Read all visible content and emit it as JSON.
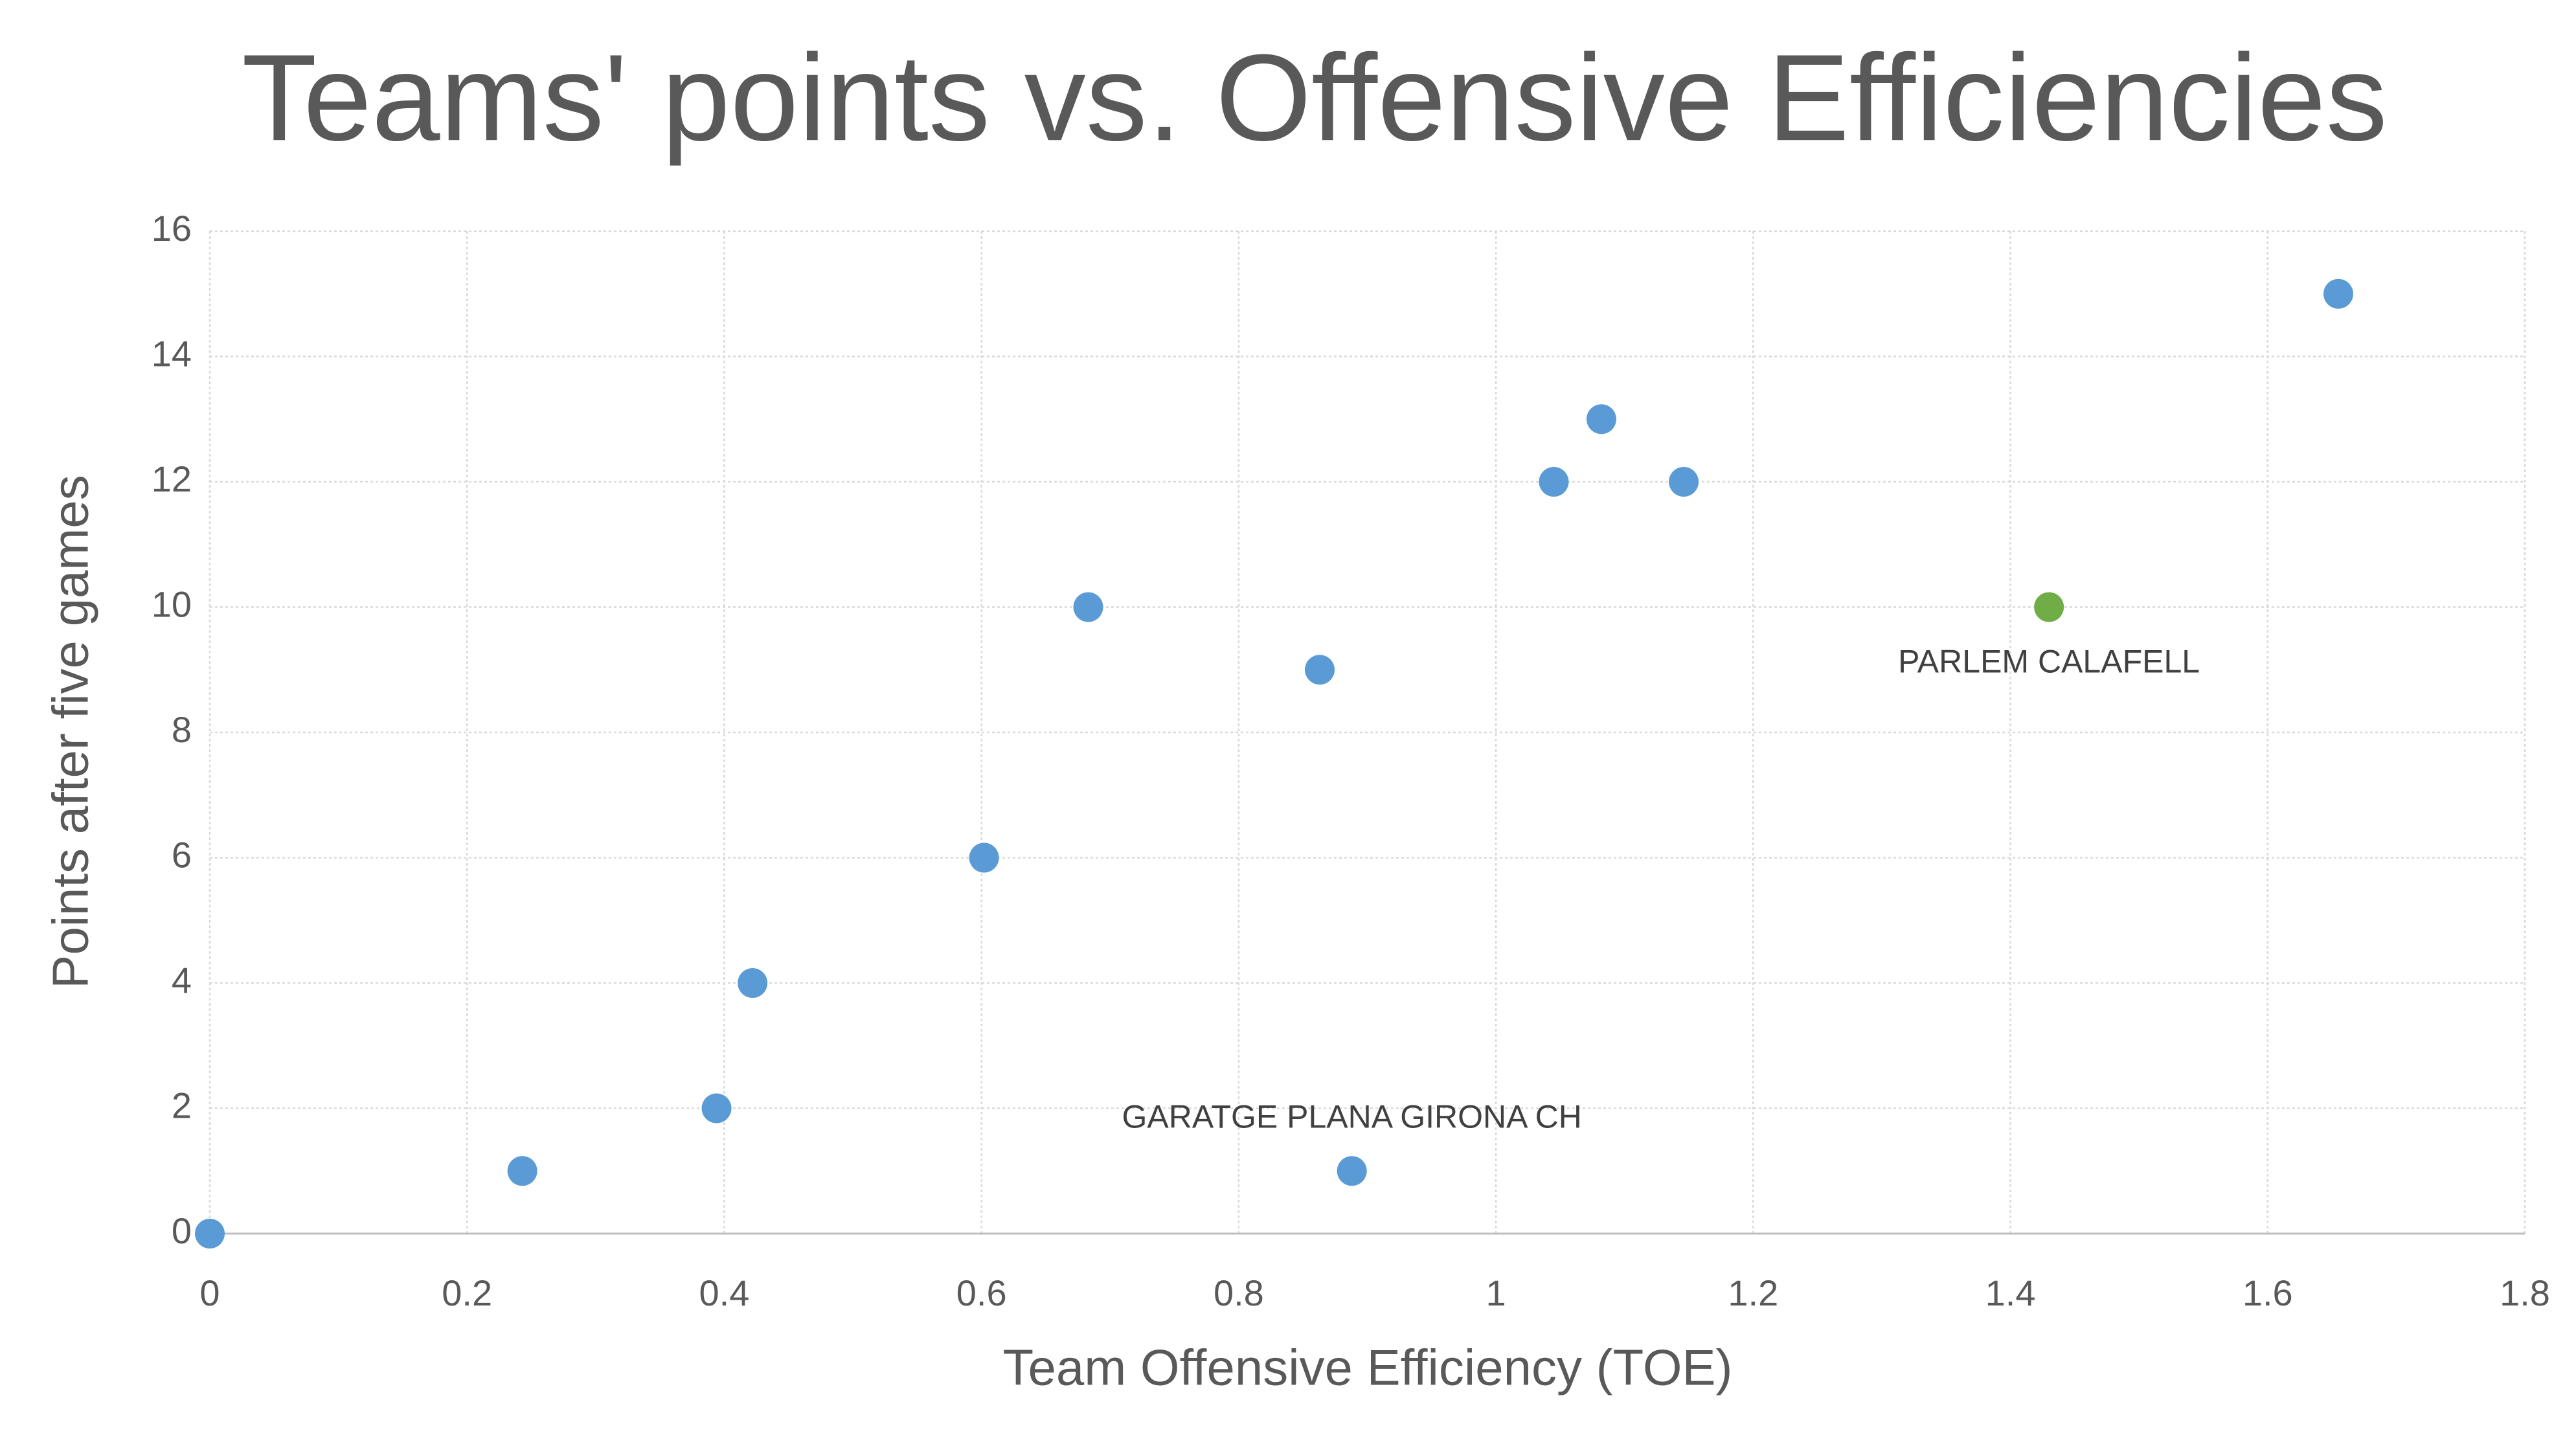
{
  "chart_data": {
    "type": "scatter",
    "title": "Teams' points vs. Offensive Efficiencies",
    "x_label": "Team Offensive Efficiency (TOE)",
    "y_label": "Points after five games",
    "xlim": [
      0,
      1.8
    ],
    "xticks": [
      0,
      0.2,
      0.4,
      0.6,
      0.8,
      1,
      1.2,
      1.4,
      1.6,
      1.8
    ],
    "ylim": [
      0,
      16
    ],
    "yticks": [
      0,
      2,
      4,
      6,
      8,
      10,
      12,
      14,
      16
    ],
    "grid": true,
    "series": [
      {
        "color": "#5b9bd5",
        "label_position": "above",
        "x": [
          0,
          0.243,
          0.394,
          0.422,
          0.602,
          0.683,
          0.863,
          0.888,
          1.045,
          1.082,
          1.146,
          1.655
        ],
        "values": [
          0,
          1,
          2,
          4,
          6,
          10,
          9,
          1,
          12,
          13,
          12,
          15
        ],
        "labels": [
          null,
          null,
          null,
          null,
          null,
          null,
          null,
          "GARATGE PLANA GIRONA CH",
          null,
          null,
          null,
          null
        ]
      },
      {
        "color": "#70ad47",
        "label_position": "below",
        "x": [
          1.43
        ],
        "values": [
          10
        ],
        "labels": [
          "PARLEM CALAFELL"
        ]
      }
    ]
  }
}
